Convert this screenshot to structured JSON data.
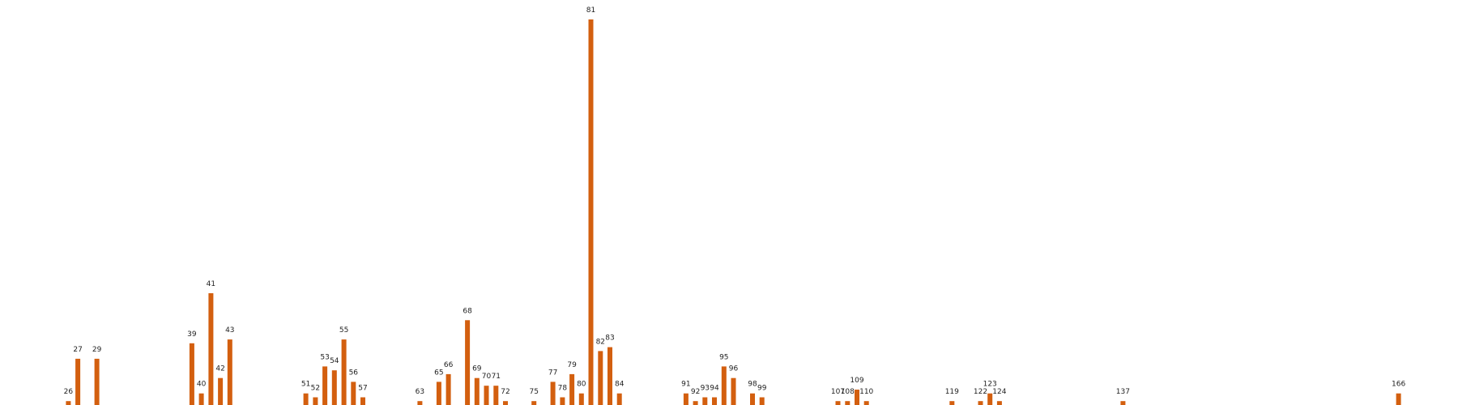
{
  "chart_data": {
    "type": "bar",
    "title": "",
    "xlabel": "",
    "ylabel": "",
    "grid": false,
    "bar_color": "#d35f0f",
    "categories": [
      "26",
      "27",
      "29",
      "39",
      "40",
      "41",
      "42",
      "43",
      "51",
      "52",
      "53",
      "54",
      "55",
      "56",
      "57",
      "63",
      "65",
      "66",
      "68",
      "69",
      "70",
      "71",
      "72",
      "75",
      "77",
      "78",
      "79",
      "80",
      "81",
      "82",
      "83",
      "84",
      "91",
      "92",
      "93",
      "94",
      "95",
      "96",
      "98",
      "99",
      "107",
      "108",
      "109",
      "110",
      "119",
      "122",
      "123",
      "124",
      "137",
      "166"
    ],
    "values": [
      1,
      12,
      12,
      16,
      3,
      29,
      7,
      17,
      3,
      2,
      10,
      9,
      17,
      6,
      2,
      1,
      6,
      8,
      22,
      7,
      5,
      5,
      1,
      1,
      6,
      2,
      8,
      3,
      100,
      14,
      15,
      3,
      3,
      1,
      2,
      2,
      10,
      7,
      3,
      2,
      1,
      1,
      4,
      1,
      1,
      1,
      3,
      1,
      1,
      3
    ],
    "ylim": [
      0,
      100
    ]
  }
}
